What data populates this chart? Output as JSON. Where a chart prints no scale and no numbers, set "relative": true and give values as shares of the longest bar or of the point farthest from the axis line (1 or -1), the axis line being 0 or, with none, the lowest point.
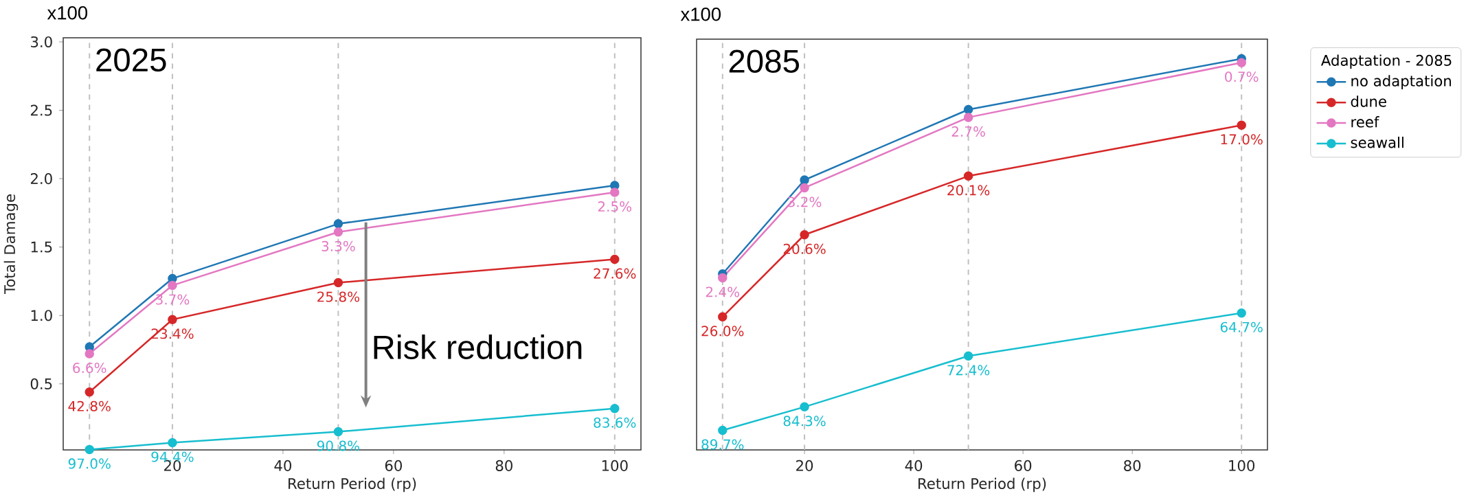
{
  "chart_data": [
    {
      "type": "line",
      "title": "2025",
      "xlabel": "Return Period (rp)",
      "ylabel": "Total Damage",
      "marker": "circle",
      "x": [
        5,
        20,
        50,
        100
      ],
      "xlim": [
        0.25,
        104.75
      ],
      "xticks": [
        20,
        40,
        60,
        80,
        100
      ],
      "ylim": [
        0.017,
        3.03
      ],
      "yticks": [
        {
          "value": 0.5,
          "label": "0.5"
        },
        {
          "value": 1,
          "label": "1.0"
        },
        {
          "value": 1.5,
          "label": "1.5"
        },
        {
          "value": 2,
          "label": "2.0"
        },
        {
          "value": 2.5,
          "label": "2.5"
        },
        {
          "value": 3,
          "label": "3.0"
        }
      ],
      "series": [
        {
          "color": "#1f77b4",
          "values": [
            0.77,
            1.27,
            1.67,
            1.95
          ]
        },
        {
          "color": "#d62728",
          "values": [
            0.44,
            0.97,
            1.24,
            1.41
          ]
        },
        {
          "color": "#e377c2",
          "values": [
            0.72,
            1.22,
            1.61,
            1.9
          ]
        },
        {
          "color": "#17becf",
          "values": [
            0.02,
            0.07,
            0.15,
            0.32
          ]
        }
      ],
      "ref_lines": [
        {
          "axis": "x",
          "value": 5,
          "color": "#c0c0c0",
          "line_style": "dashed"
        },
        {
          "axis": "x",
          "value": 20,
          "color": "#c0c0c0",
          "line_style": "dashed"
        },
        {
          "axis": "x",
          "value": 50,
          "color": "#c0c0c0",
          "line_style": "dashed"
        },
        {
          "axis": "x",
          "value": 100,
          "color": "#c0c0c0",
          "line_style": "dashed"
        }
      ],
      "annotations": [
        "x100",
        {
          "text": "Risk reduction",
          "x": 55,
          "y": 1.68
        },
        {
          "text": "42.8%",
          "x": 5,
          "y": 0.44
        },
        {
          "text": "23.4%",
          "x": 20,
          "y": 0.97
        },
        {
          "text": "25.8%",
          "x": 50,
          "y": 1.24
        },
        {
          "text": "27.6%",
          "x": 100,
          "y": 1.41
        },
        {
          "text": "6.6%",
          "x": 5,
          "y": 0.72
        },
        {
          "text": "3.7%",
          "x": 20,
          "y": 1.22
        },
        {
          "text": "3.3%",
          "x": 50,
          "y": 1.61
        },
        {
          "text": "2.5%",
          "x": 100,
          "y": 1.9
        },
        {
          "text": "97.0%",
          "x": 5,
          "y": 0.02
        },
        {
          "text": "94.4%",
          "x": 20,
          "y": 0.07
        },
        {
          "text": "90.8%",
          "x": 50,
          "y": 0.15
        },
        {
          "text": "83.6%",
          "x": 100,
          "y": 0.32
        }
      ]
    },
    {
      "type": "line",
      "title": "2085",
      "xlabel": "Return Period (rp)",
      "marker": "circle",
      "x": [
        5,
        20,
        50,
        100
      ],
      "xlim": [
        0.25,
        104.75
      ],
      "xticks": [
        20,
        40,
        60,
        80,
        100
      ],
      "relative": true,
      "tick_labels": "x",
      "legend": "top right",
      "legend_title": "Adaptation - 2085",
      "series": [
        {
          "name": "no adaptation",
          "color": "#1f77b4",
          "values": [
            0.45,
            0.69,
            0.87,
            1.0
          ]
        },
        {
          "name": "dune",
          "color": "#d62728",
          "values": [
            0.34,
            0.55,
            0.7,
            0.83
          ]
        },
        {
          "name": "reef",
          "color": "#e377c2",
          "values": [
            0.44,
            0.67,
            0.85,
            0.99
          ]
        },
        {
          "name": "seawall",
          "color": "#17becf",
          "values": [
            0.05,
            0.11,
            0.24,
            0.35
          ]
        }
      ],
      "ref_lines": [
        {
          "axis": "x",
          "value": 5,
          "color": "#c0c0c0",
          "line_style": "dashed"
        },
        {
          "axis": "x",
          "value": 20,
          "color": "#c0c0c0",
          "line_style": "dashed"
        },
        {
          "axis": "x",
          "value": 50,
          "color": "#c0c0c0",
          "line_style": "dashed"
        },
        {
          "axis": "x",
          "value": 100,
          "color": "#c0c0c0",
          "line_style": "dashed"
        }
      ],
      "annotations": [
        "x100",
        {
          "text": "26.0%",
          "x": 5,
          "y": 0.34
        },
        {
          "text": "20.6%",
          "x": 20,
          "y": 0.55
        },
        {
          "text": "20.1%",
          "x": 50,
          "y": 0.7
        },
        {
          "text": "17.0%",
          "x": 100,
          "y": 0.83
        },
        {
          "text": "2.4%",
          "x": 5,
          "y": 0.44
        },
        {
          "text": "3.2%",
          "x": 20,
          "y": 0.67
        },
        {
          "text": "2.7%",
          "x": 50,
          "y": 0.85
        },
        {
          "text": "0.7%",
          "x": 100,
          "y": 0.99
        },
        {
          "text": "89.7%",
          "x": 5,
          "y": 0.05
        },
        {
          "text": "84.3%",
          "x": 20,
          "y": 0.11
        },
        {
          "text": "72.4%",
          "x": 50,
          "y": 0.24
        },
        {
          "text": "64.7%",
          "x": 100,
          "y": 0.35
        }
      ]
    }
  ]
}
